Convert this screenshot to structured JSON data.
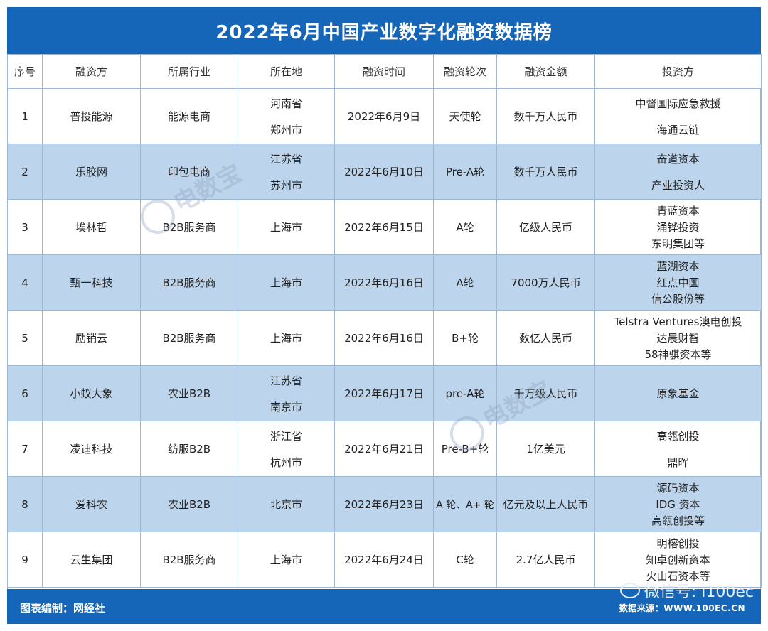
{
  "title": "2022年6月中国产业数字化融资数据榜",
  "columns": [
    "序号",
    "融资方",
    "所属行业",
    "所在地",
    "融资时间",
    "融资轮次",
    "融资金额",
    "投资方"
  ],
  "rows": [
    {
      "no": "1",
      "company": "普投能源",
      "industry": "能源电商",
      "location": [
        "河南省",
        "郑州市"
      ],
      "date": "2022年6月9日",
      "round": "天使轮",
      "amount": "数千万人民币",
      "investors": [
        "中督国际应急救援",
        "海通云链"
      ]
    },
    {
      "no": "2",
      "company": "乐胶网",
      "industry": "印包电商",
      "location": [
        "江苏省",
        "苏州市"
      ],
      "date": "2022年6月10日",
      "round": "Pre-A轮",
      "amount": "数千万人民币",
      "investors": [
        "奋道资本",
        "产业投资人"
      ]
    },
    {
      "no": "3",
      "company": "埃林哲",
      "industry": "B2B服务商",
      "location": [
        "上海市"
      ],
      "date": "2022年6月15日",
      "round": "A轮",
      "amount": "亿级人民币",
      "investors": [
        "青蓝资本",
        "涌铧投资",
        "东明集团等"
      ]
    },
    {
      "no": "4",
      "company": "甄一科技",
      "industry": "B2B服务商",
      "location": [
        "上海市"
      ],
      "date": "2022年6月16日",
      "round": "A轮",
      "amount": "7000万人民币",
      "investors": [
        "蓝湖资本",
        "红点中国",
        "信公股份等"
      ]
    },
    {
      "no": "5",
      "company": "励销云",
      "industry": "B2B服务商",
      "location": [
        "上海市"
      ],
      "date": "2022年6月16日",
      "round": "B+轮",
      "amount": "数亿人民币",
      "investors": [
        "Telstra Ventures澳电创投",
        "达晨财智",
        "58神骐资本等"
      ]
    },
    {
      "no": "6",
      "company": "小蚁大象",
      "industry": "农业B2B",
      "location": [
        "江苏省",
        "南京市"
      ],
      "date": "2022年6月17日",
      "round": "pre-A轮",
      "amount": "千万级人民币",
      "investors": [
        "原象基金"
      ]
    },
    {
      "no": "7",
      "company": "凌迪科技",
      "industry": "纺服B2B",
      "location": [
        "浙江省",
        "杭州市"
      ],
      "date": "2022年6月21日",
      "round": "Pre-B+轮",
      "amount": "1亿美元",
      "investors": [
        "高瓴创投",
        "鼎晖"
      ]
    },
    {
      "no": "8",
      "company": "爱科农",
      "industry": "农业B2B",
      "location": [
        "北京市"
      ],
      "date": "2022年6月23日",
      "round": "A 轮、A+ 轮",
      "amount": "亿元及以上人民币",
      "investors": [
        "源码资本",
        "IDG 资本",
        "高瓴创投等"
      ]
    },
    {
      "no": "9",
      "company": "云生集团",
      "industry": "B2B服务商",
      "location": [
        "上海市"
      ],
      "date": "2022年6月24日",
      "round": "C轮",
      "amount": "2.7亿人民币",
      "investors": [
        "明榕创投",
        "知卓创新资本",
        "火山石资本等"
      ]
    }
  ],
  "footer": {
    "left": "图表编制：网经社",
    "right": "数据来源：WWW.100EC.CN"
  },
  "wechat_badge": "微信号: i100ec",
  "watermark_text": "电数宝",
  "colors": {
    "header_blue": "#1566b8",
    "row_shade": "#bcd5ec",
    "border": "#9bb7d4"
  }
}
